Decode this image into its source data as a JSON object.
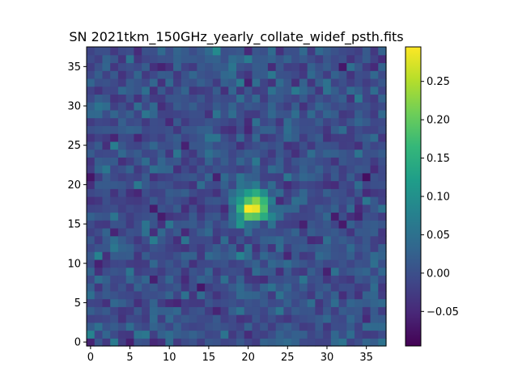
{
  "chart_data": {
    "type": "heatmap",
    "title": "SN 2021tkm_150GHz_yearly_collate_widef_psth.fits",
    "xlabel": "",
    "ylabel": "",
    "grid_size": [
      38,
      38
    ],
    "xlim": [
      -0.5,
      37.5
    ],
    "ylim": [
      -0.5,
      37.5
    ],
    "origin": "lower",
    "colormap": "viridis",
    "colorbar": {
      "vmin": -0.095,
      "vmax": 0.295,
      "ticks": [
        -0.05,
        0.0,
        0.05,
        0.1,
        0.15,
        0.2,
        0.25
      ],
      "tick_labels": [
        "−0.05",
        "0.00",
        "0.05",
        "0.10",
        "0.15",
        "0.20",
        "0.25"
      ]
    },
    "x_ticks": [
      0,
      5,
      10,
      15,
      20,
      25,
      30,
      35
    ],
    "x_tick_labels": [
      "0",
      "5",
      "10",
      "15",
      "20",
      "25",
      "30",
      "35"
    ],
    "y_ticks": [
      0,
      5,
      10,
      15,
      20,
      25,
      30,
      35
    ],
    "y_tick_labels": [
      "0",
      "5",
      "10",
      "15",
      "20",
      "25",
      "30",
      "35"
    ],
    "source": {
      "x": 20.6,
      "y": 17.3,
      "peak": 0.285,
      "sigma": 1.45
    },
    "background": {
      "mean": 0.0,
      "noise_sd": 0.025
    },
    "notable_pixels": [
      {
        "x": 35,
        "y": 21,
        "value": -0.08
      },
      {
        "x": 32,
        "y": 35,
        "value": -0.07
      },
      {
        "x": 14,
        "y": 7,
        "value": -0.07
      },
      {
        "x": 27,
        "y": 15,
        "value": -0.06
      },
      {
        "x": 30,
        "y": 9,
        "value": -0.06
      },
      {
        "x": 16,
        "y": 37,
        "value": 0.09
      },
      {
        "x": 3,
        "y": 25,
        "value": 0.07
      }
    ]
  }
}
